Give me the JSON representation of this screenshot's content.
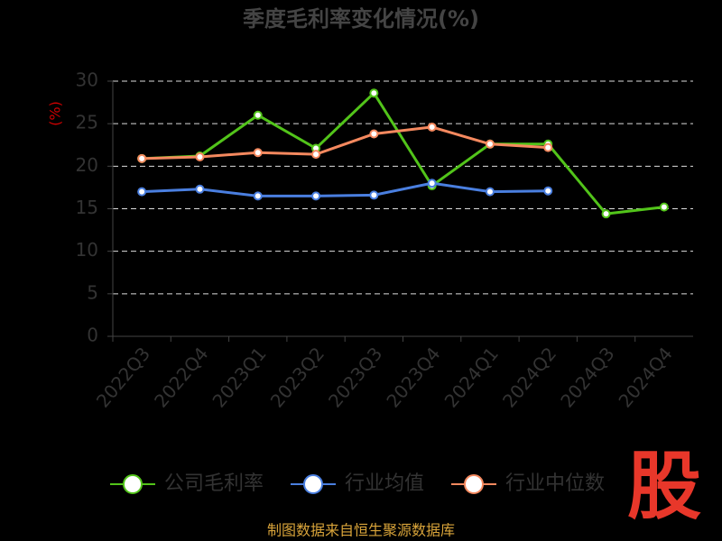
{
  "chart_data": {
    "type": "line",
    "title": "季度毛利率变化情况(%)",
    "y_label": "(%)",
    "categories": [
      "2022Q3",
      "2022Q4",
      "2023Q1",
      "2023Q2",
      "2023Q3",
      "2023Q4",
      "2024Q1",
      "2024Q2",
      "2024Q3",
      "2024Q4"
    ],
    "series": [
      {
        "name": "公司毛利率",
        "color": "#52c41a",
        "values": [
          20.9,
          21.2,
          26.0,
          22.1,
          28.6,
          17.7,
          22.6,
          22.6,
          14.4,
          15.2
        ]
      },
      {
        "name": "行业均值",
        "color": "#4a7fe0",
        "values": [
          17.0,
          17.3,
          16.5,
          16.5,
          16.6,
          18.0,
          17.0,
          17.1,
          null,
          null
        ]
      },
      {
        "name": "行业中位数",
        "color": "#f5895f",
        "values": [
          20.9,
          21.1,
          21.6,
          21.4,
          23.8,
          24.6,
          22.6,
          22.2,
          null,
          null
        ]
      }
    ],
    "ylim": [
      0,
      30
    ],
    "yticks": [
      0,
      5,
      10,
      15,
      20,
      25,
      30
    ],
    "grid": true,
    "source": "制图数据来自恒生聚源数据库",
    "logo": "股"
  }
}
